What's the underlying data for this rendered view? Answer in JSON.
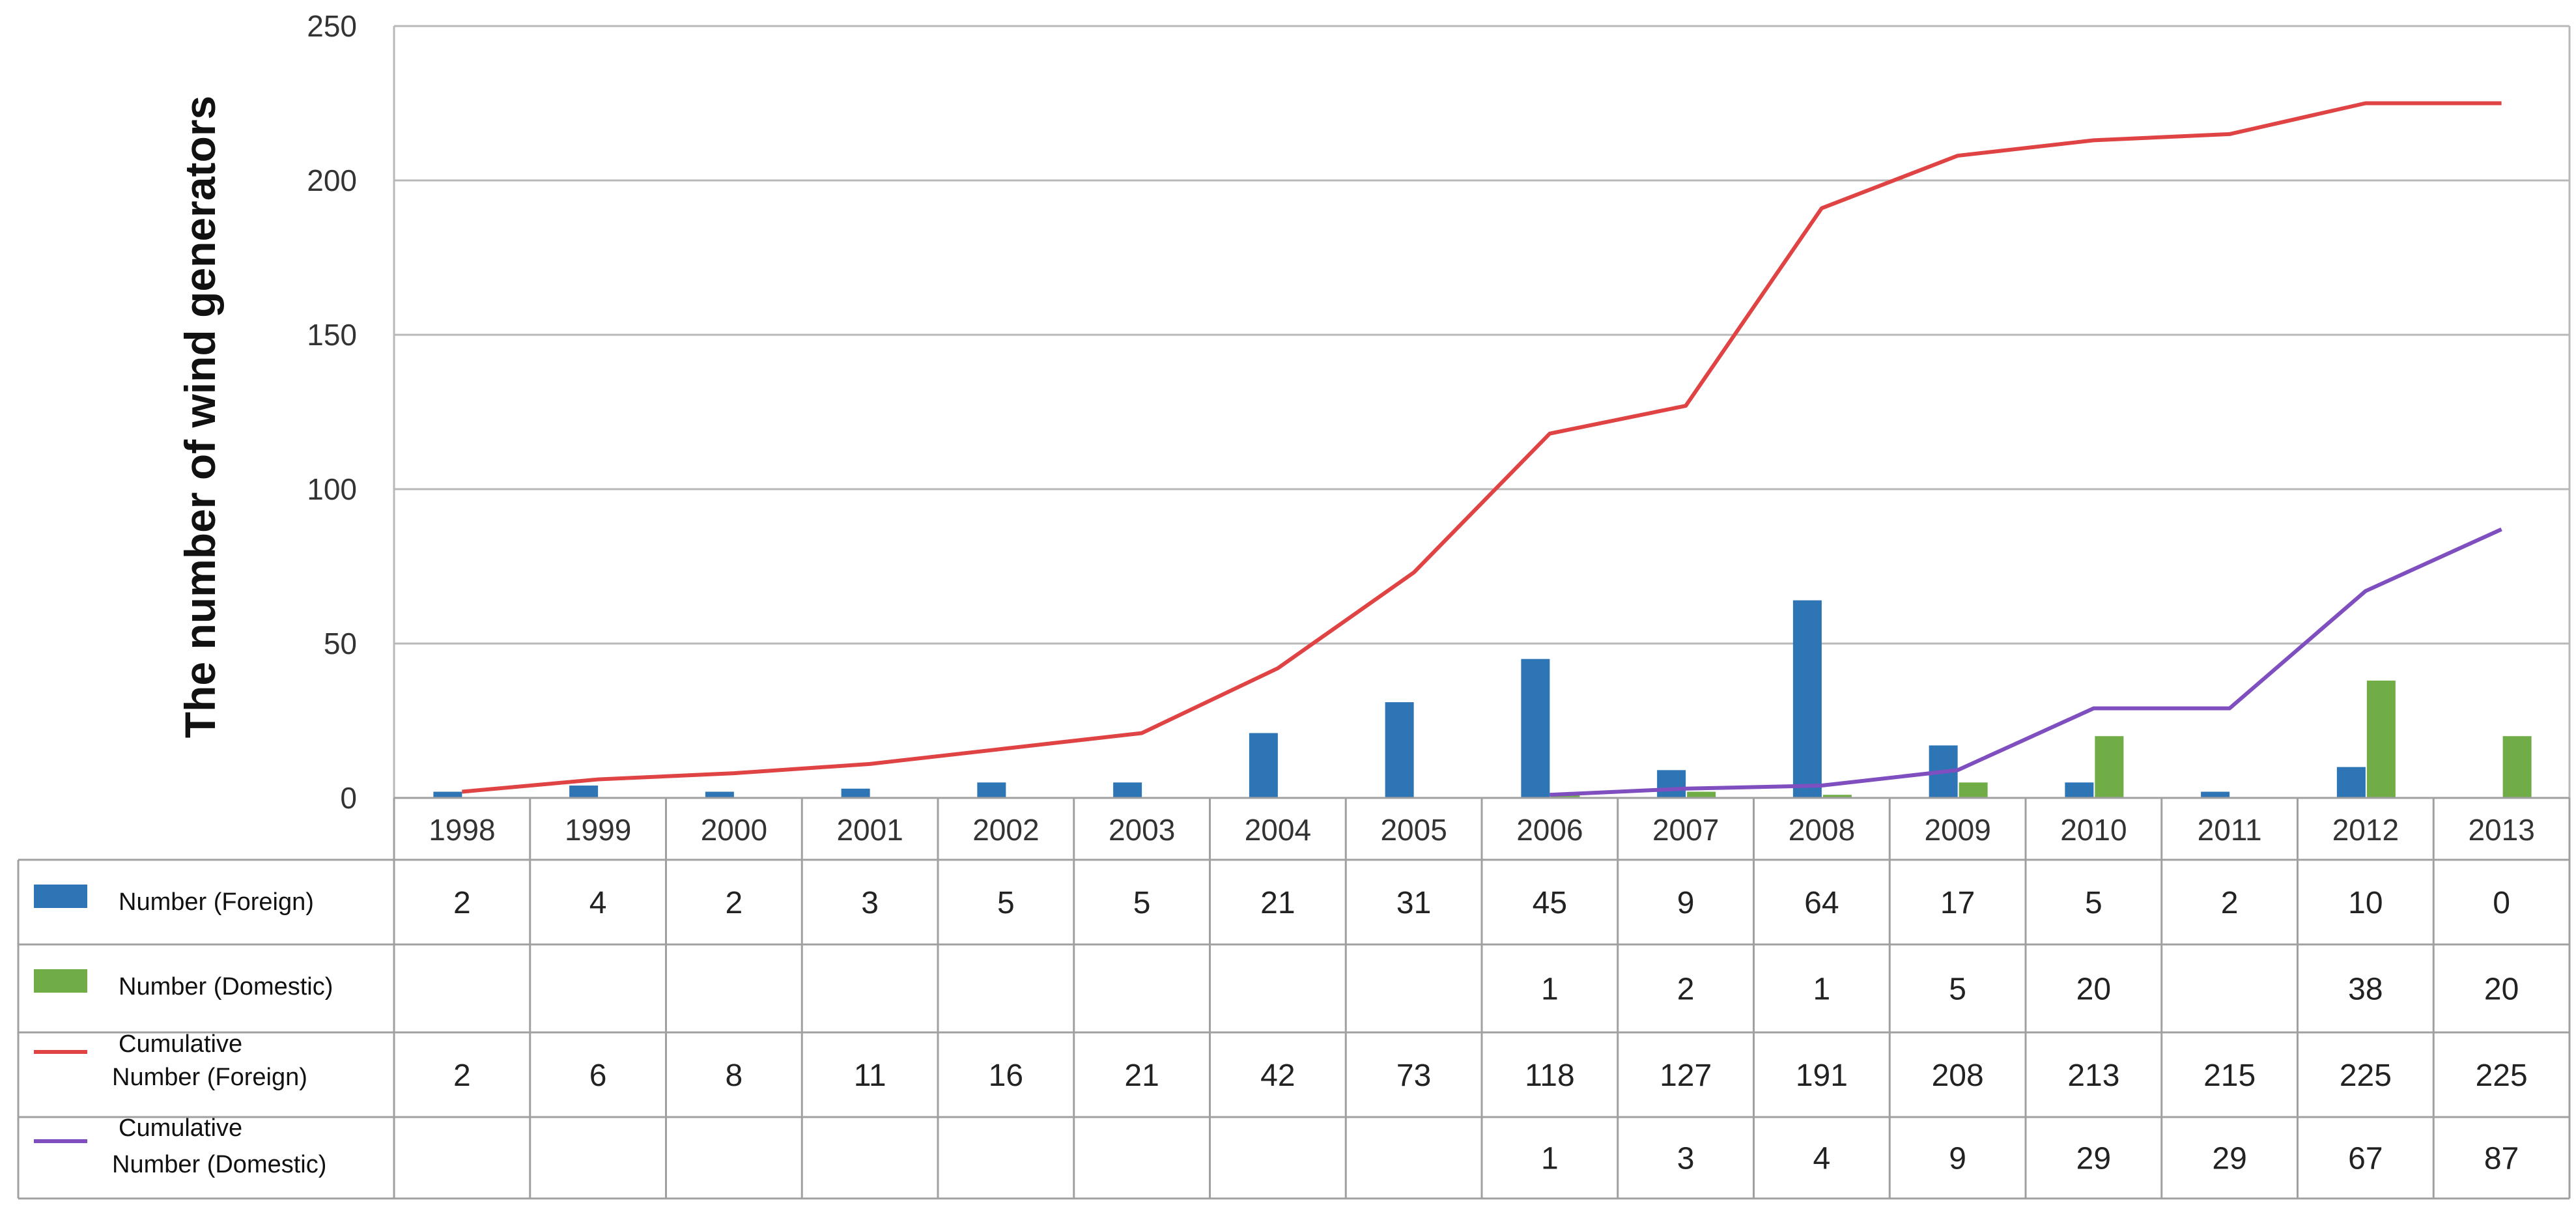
{
  "chart_data": {
    "type": "bar",
    "ylabel": "The number of wind generators",
    "ylim": [
      0,
      250
    ],
    "yticks": [
      0,
      50,
      100,
      150,
      200,
      250
    ],
    "grid": true,
    "categories": [
      "1998",
      "1999",
      "2000",
      "2001",
      "2002",
      "2003",
      "2004",
      "2005",
      "2006",
      "2007",
      "2008",
      "2009",
      "2010",
      "2011",
      "2012",
      "2013"
    ],
    "series": [
      {
        "name": "Number (Foreign)",
        "type": "bar",
        "color": "#2E75B6",
        "values": [
          2,
          4,
          2,
          3,
          5,
          5,
          21,
          31,
          45,
          9,
          64,
          17,
          5,
          2,
          10,
          0
        ]
      },
      {
        "name": "Number (Domestic)",
        "type": "bar",
        "color": "#70AD47",
        "values": [
          null,
          null,
          null,
          null,
          null,
          null,
          null,
          null,
          1,
          2,
          1,
          5,
          20,
          null,
          38,
          20
        ]
      },
      {
        "name_line1": "Cumulative",
        "name_line2": "Number (Foreign)",
        "type": "line",
        "color": "#E04343",
        "values": [
          2,
          6,
          8,
          11,
          16,
          21,
          42,
          73,
          118,
          127,
          191,
          208,
          213,
          215,
          225,
          225
        ]
      },
      {
        "name_line1": "Cumulative",
        "name_line2": "Number (Domestic)",
        "type": "line",
        "color": "#7F4FBF",
        "values": [
          null,
          null,
          null,
          null,
          null,
          null,
          null,
          null,
          1,
          3,
          4,
          9,
          29,
          29,
          67,
          87
        ]
      }
    ],
    "data_table": true
  }
}
